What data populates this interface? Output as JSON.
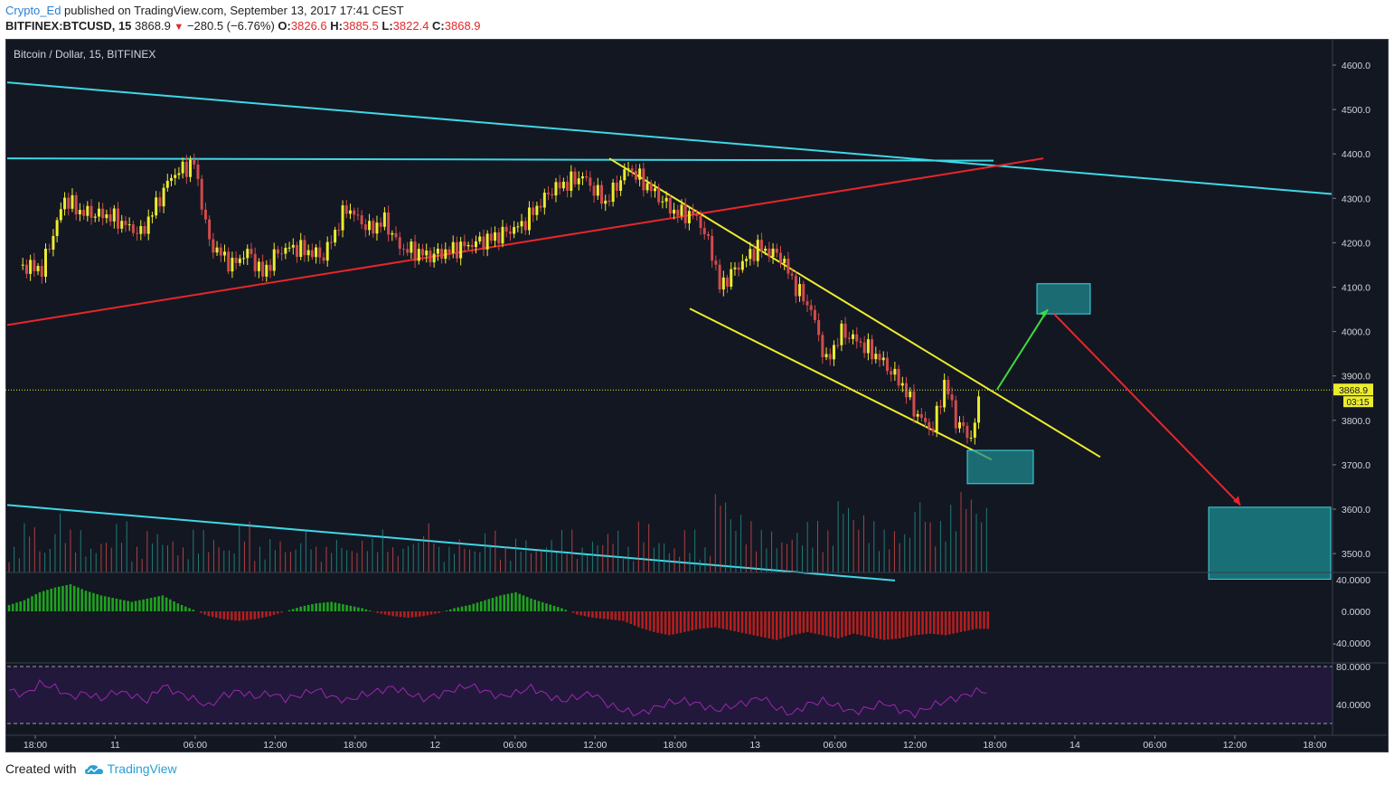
{
  "header": {
    "author": "Crypto_Ed",
    "published_text": "published on TradingView.com, September 13, 2017 17:41 CEST",
    "symbol": "BITFINEX:BTCUSD, 15",
    "last": "3868.9",
    "change_arrow": "▼",
    "change": "−280.5 (−6.76%)",
    "o_label": "O:",
    "o_value": "3826.6",
    "h_label": "H:",
    "h_value": "3885.5",
    "l_label": "L:",
    "l_value": "3822.4",
    "c_label": "C:",
    "c_value": "3868.9"
  },
  "footer": {
    "created_with": "Created with",
    "brand": "TradingView"
  },
  "chart_data": {
    "type": "candlestick",
    "title": "Bitcoin / Dollar, 15, BITFINEX",
    "y_axis": {
      "range": [
        3440,
        4640
      ],
      "ticks": [
        "4600.0",
        "4500.0",
        "4400.0",
        "4300.0",
        "4200.0",
        "4100.0",
        "4000.0",
        "3900.0",
        "3800.0",
        "3700.0",
        "3600.0",
        "3500.0"
      ]
    },
    "x_axis": {
      "ticks": [
        "18:00",
        "11",
        "06:00",
        "12:00",
        "18:00",
        "12",
        "06:00",
        "12:00",
        "18:00",
        "13",
        "06:00",
        "12:00",
        "18:00",
        "14",
        "06:00",
        "12:00",
        "18:00"
      ]
    },
    "last_price_label": "3868.9",
    "countdown_label": "03:15",
    "price_path": [
      {
        "t": 0,
        "p": 4150
      },
      {
        "t": 1.5,
        "p": 4140
      },
      {
        "t": 3,
        "p": 4300
      },
      {
        "t": 4,
        "p": 4270
      },
      {
        "t": 6,
        "p": 4260
      },
      {
        "t": 8,
        "p": 4220
      },
      {
        "t": 10,
        "p": 4350
      },
      {
        "t": 11.5,
        "p": 4380
      },
      {
        "t": 12.5,
        "p": 4200
      },
      {
        "t": 14,
        "p": 4150
      },
      {
        "t": 15,
        "p": 4180
      },
      {
        "t": 16,
        "p": 4130
      },
      {
        "t": 17,
        "p": 4180
      },
      {
        "t": 18,
        "p": 4190
      },
      {
        "t": 20,
        "p": 4170
      },
      {
        "t": 21.5,
        "p": 4280
      },
      {
        "t": 23,
        "p": 4230
      },
      {
        "t": 24,
        "p": 4250
      },
      {
        "t": 25,
        "p": 4190
      },
      {
        "t": 27,
        "p": 4170
      },
      {
        "t": 29,
        "p": 4190
      },
      {
        "t": 31,
        "p": 4210
      },
      {
        "t": 33,
        "p": 4240
      },
      {
        "t": 35,
        "p": 4320
      },
      {
        "t": 37,
        "p": 4350
      },
      {
        "t": 38.5,
        "p": 4290
      },
      {
        "t": 40,
        "p": 4370
      },
      {
        "t": 41.5,
        "p": 4320
      },
      {
        "t": 43,
        "p": 4270
      },
      {
        "t": 44.5,
        "p": 4260
      },
      {
        "t": 45.5,
        "p": 4180
      },
      {
        "t": 46,
        "p": 4100
      },
      {
        "t": 47,
        "p": 4140
      },
      {
        "t": 48.5,
        "p": 4190
      },
      {
        "t": 50,
        "p": 4170
      },
      {
        "t": 51,
        "p": 4100
      },
      {
        "t": 52,
        "p": 4050
      },
      {
        "t": 53,
        "p": 3930
      },
      {
        "t": 54,
        "p": 4000
      },
      {
        "t": 55,
        "p": 3980
      },
      {
        "t": 56.5,
        "p": 3940
      },
      {
        "t": 58,
        "p": 3880
      },
      {
        "t": 59,
        "p": 3810
      },
      {
        "t": 60,
        "p": 3780
      },
      {
        "t": 60.8,
        "p": 3890
      },
      {
        "t": 61.5,
        "p": 3800
      },
      {
        "t": 62.5,
        "p": 3760
      },
      {
        "t": 63.2,
        "p": 3868.9
      }
    ],
    "volume_series": [
      0.3,
      0.6,
      0.3,
      0.7,
      0.5,
      0.3,
      0.4,
      0.6,
      0.3,
      0.5,
      0.4,
      0.3,
      0.5,
      0.4,
      0.3,
      0.6,
      0.3,
      0.4,
      0.3,
      0.5,
      0.3,
      0.4,
      0.3,
      0.4,
      0.5,
      0.3,
      0.4,
      0.6,
      0.3,
      0.4,
      0.3,
      0.5,
      0.3,
      0.4,
      0.3,
      0.4,
      0.5,
      0.3,
      0.4,
      0.5,
      0.3,
      0.6,
      0.4,
      0.3,
      0.5,
      0.3,
      1.0,
      0.7,
      0.6,
      0.5,
      0.4,
      0.5,
      0.6,
      0.5,
      0.9,
      0.7,
      0.6,
      0.5,
      0.5,
      0.9,
      0.6,
      0.8,
      1.0,
      0.8
    ],
    "macd_series": [
      8,
      14,
      24,
      30,
      34,
      26,
      20,
      16,
      12,
      16,
      20,
      10,
      2,
      -6,
      -10,
      -12,
      -10,
      -6,
      0,
      6,
      10,
      12,
      8,
      4,
      -2,
      -6,
      -8,
      -6,
      -2,
      4,
      8,
      14,
      20,
      24,
      16,
      10,
      4,
      -4,
      -8,
      -10,
      -12,
      -20,
      -26,
      -30,
      -26,
      -22,
      -20,
      -24,
      -28,
      -32,
      -36,
      -30,
      -26,
      -30,
      -34,
      -28,
      -32,
      -36,
      -34,
      -30,
      -28,
      -30,
      -26,
      -22
    ],
    "rsi_series": [
      55,
      50,
      62,
      58,
      48,
      52,
      46,
      54,
      50,
      44,
      60,
      52,
      46,
      38,
      50,
      54,
      48,
      52,
      46,
      50,
      56,
      48,
      44,
      50,
      54,
      58,
      52,
      46,
      50,
      56,
      60,
      54,
      48,
      52,
      58,
      50,
      44,
      48,
      52,
      40,
      34,
      30,
      36,
      42,
      44,
      40,
      34,
      38,
      42,
      48,
      36,
      30,
      40,
      44,
      38,
      32,
      36,
      42,
      34,
      30,
      38,
      44,
      48,
      54
    ],
    "indicators": {
      "macd_ticks": [
        "40.0000",
        "0.0000",
        "-40.0000"
      ],
      "rsi_ticks": [
        "80.0000",
        "40.0000"
      ]
    }
  }
}
